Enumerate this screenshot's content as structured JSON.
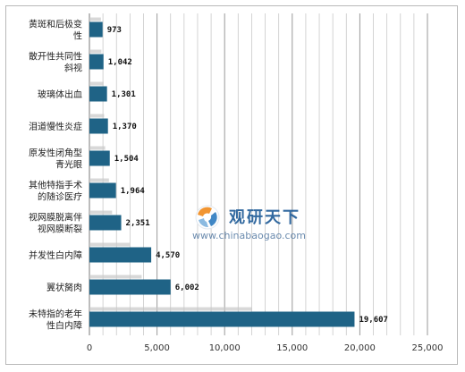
{
  "chart_data": {
    "type": "bar",
    "orientation": "horizontal",
    "categories": [
      "黄斑和后极变性",
      "散开性共同性斜视",
      "玻璃体出血",
      "泪道慢性炎症",
      "原发性闭角型青光眼",
      "其他特指手术的随诊医疗",
      "视网膜脱离伴视网膜断裂",
      "并发性白内障",
      "翼状胬肉",
      "未特指的老年性白内障"
    ],
    "values": [
      973,
      1042,
      1301,
      1370,
      1504,
      1964,
      2351,
      4570,
      6002,
      19607
    ],
    "value_labels": [
      "973",
      "1,042",
      "1,301",
      "1,370",
      "1,504",
      "1,964",
      "2,351",
      "4,570",
      "6,002",
      "19,607"
    ],
    "xlim": [
      0,
      25000
    ],
    "x_ticks": [
      0,
      5000,
      10000,
      15000,
      20000,
      25000
    ],
    "x_tick_labels": [
      "0",
      "5,000",
      "10,000",
      "15,000",
      "20,000",
      "25,000"
    ],
    "grid": "vertical",
    "bar_color": "#1f6386",
    "title": "",
    "xlabel": "",
    "ylabel": ""
  },
  "watermark": {
    "title": "观研天下",
    "url": "www.chinabaogao.com",
    "logo_icon": "chinabaogao-logo-icon",
    "colors": {
      "title": "#1d5a96",
      "logo_orange": "#f08a1c",
      "logo_blue": "#2d7cc0"
    }
  }
}
